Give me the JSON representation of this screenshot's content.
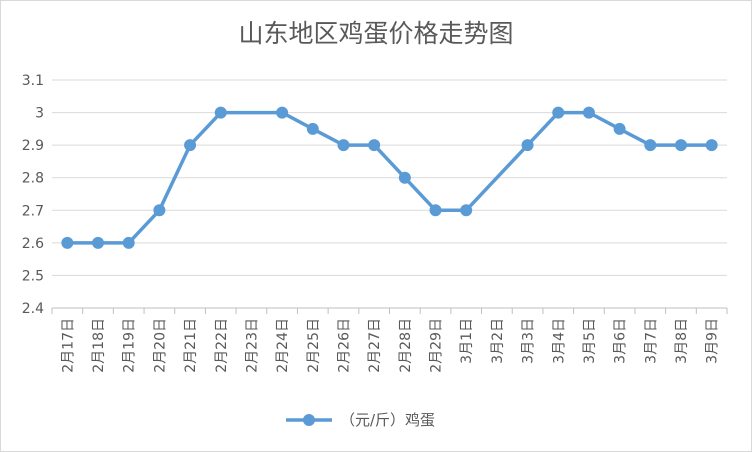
{
  "chart_data": {
    "type": "line",
    "title": "山东地区鸡蛋价格走势图",
    "xlabel": "",
    "ylabel": "",
    "ylim": [
      2.4,
      3.1
    ],
    "yticks": [
      "2.4",
      "2.5",
      "2.6",
      "2.7",
      "2.8",
      "2.9",
      "3",
      "3.1"
    ],
    "grid": true,
    "legend_position": "bottom",
    "categories": [
      "2月17日",
      "2月18日",
      "2月19日",
      "2月20日",
      "2月21日",
      "2月22日",
      "2月23日",
      "2月24日",
      "2月25日",
      "2月26日",
      "2月27日",
      "2月28日",
      "2月29日",
      "3月1日",
      "3月2日",
      "3月3日",
      "3月4日",
      "3月5日",
      "3月6日",
      "3月7日",
      "3月8日",
      "3月9日"
    ],
    "series": [
      {
        "name": "（元/斤）鸡蛋",
        "color": "#5b9bd5",
        "values": [
          2.6,
          2.6,
          2.6,
          2.7,
          2.9,
          3.0,
          null,
          3.0,
          2.95,
          2.9,
          2.9,
          2.8,
          2.7,
          2.7,
          null,
          2.9,
          3.0,
          3.0,
          2.95,
          2.9,
          2.9,
          2.9
        ]
      }
    ]
  }
}
